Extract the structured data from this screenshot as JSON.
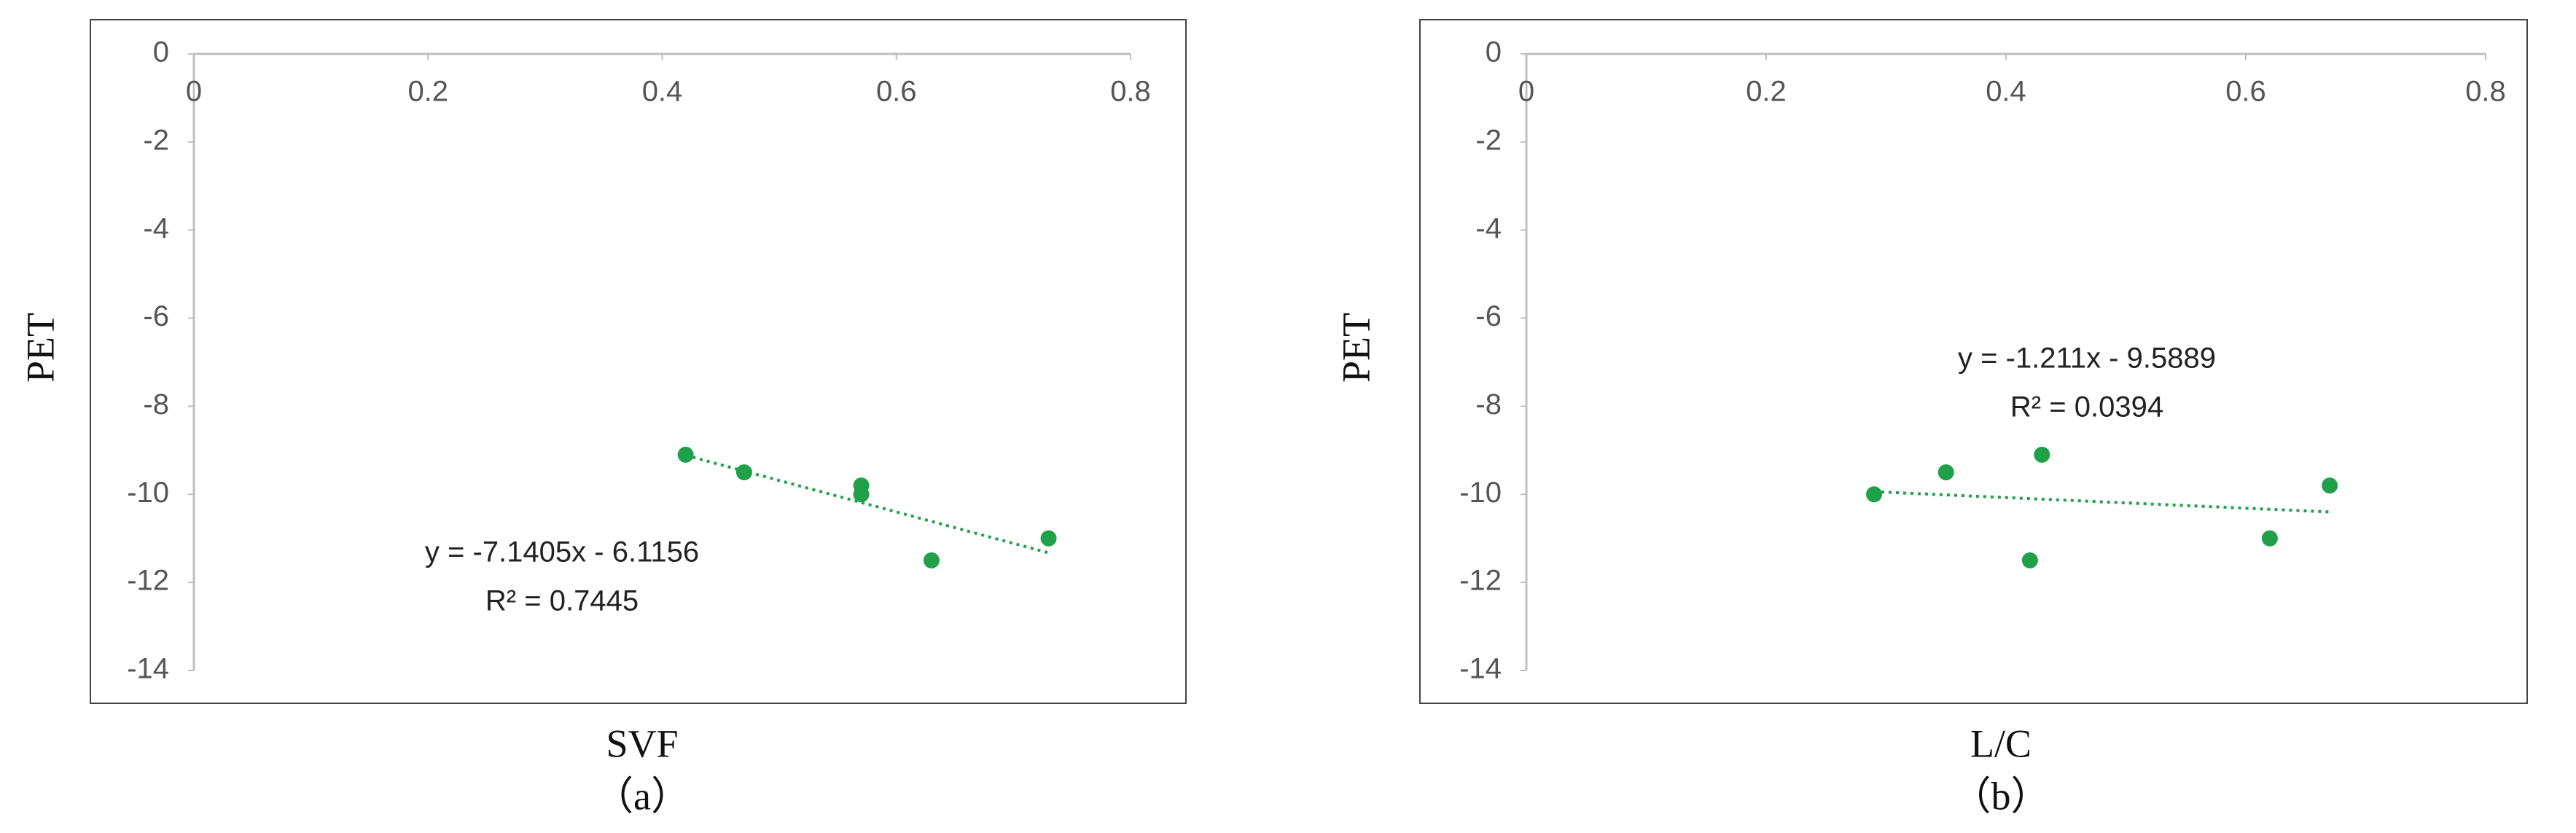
{
  "chart_data": [
    {
      "type": "scatter",
      "x_label": "SVF",
      "y_label": "PET",
      "caption": "（a）",
      "color": "#21a04a",
      "x": [
        0.42,
        0.47,
        0.57,
        0.57,
        0.63,
        0.73
      ],
      "values": [
        -9.1,
        -9.5,
        -9.8,
        -10.0,
        -11.5,
        -11.0
      ],
      "xlim": [
        0,
        0.8
      ],
      "xticks": [
        0,
        0.2,
        0.4,
        0.6,
        0.8
      ],
      "ylim": [
        -14,
        0
      ],
      "yticks": [
        0,
        -2,
        -4,
        -6,
        -8,
        -10,
        -12,
        -14
      ],
      "grid": false,
      "trendline": {
        "slope": -7.1405,
        "intercept": -6.1156,
        "equation": "y = -7.1405x - 6.1156",
        "r2": "R² = 0.7445"
      }
    },
    {
      "type": "scatter",
      "x_label": "L/C",
      "y_label": "PET",
      "caption": "（b）",
      "color": "#21a04a",
      "x": [
        0.29,
        0.35,
        0.43,
        0.42,
        0.62,
        0.67
      ],
      "values": [
        -10.0,
        -9.5,
        -9.1,
        -11.5,
        -11.0,
        -9.8
      ],
      "xlim": [
        0,
        0.8
      ],
      "xticks": [
        0,
        0.2,
        0.4,
        0.6,
        0.8
      ],
      "ylim": [
        -14,
        0
      ],
      "yticks": [
        0,
        -2,
        -4,
        -6,
        -8,
        -10,
        -12,
        -14
      ],
      "grid": false,
      "trendline": {
        "slope": -1.211,
        "intercept": -9.5889,
        "equation": "y = -1.211x - 9.5889",
        "r2": "R² = 0.0394"
      }
    }
  ]
}
